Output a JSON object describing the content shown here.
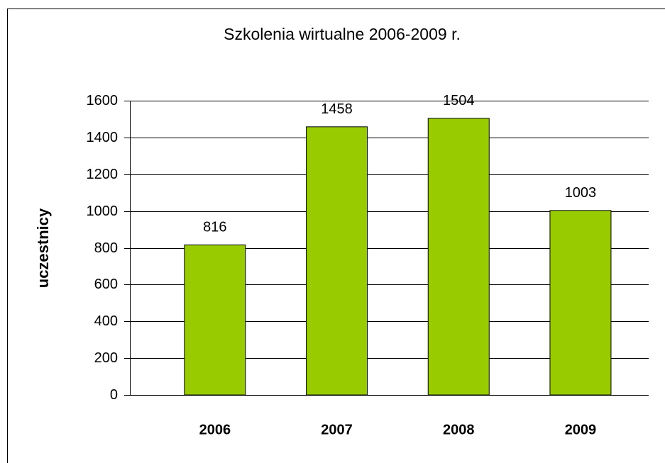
{
  "chart_data": {
    "type": "bar",
    "title": "Szkolenia wirtualne 2006-2009 r.",
    "y_label": "uczestnicy",
    "categories": [
      "2006",
      "2007",
      "2008",
      "2009"
    ],
    "values": [
      816,
      1458,
      1504,
      1003
    ],
    "color": "#99cc00",
    "ylim": [
      0,
      1600
    ],
    "yticks": [
      0,
      200,
      400,
      600,
      800,
      1000,
      1200,
      1400,
      1600
    ],
    "grid": true
  }
}
